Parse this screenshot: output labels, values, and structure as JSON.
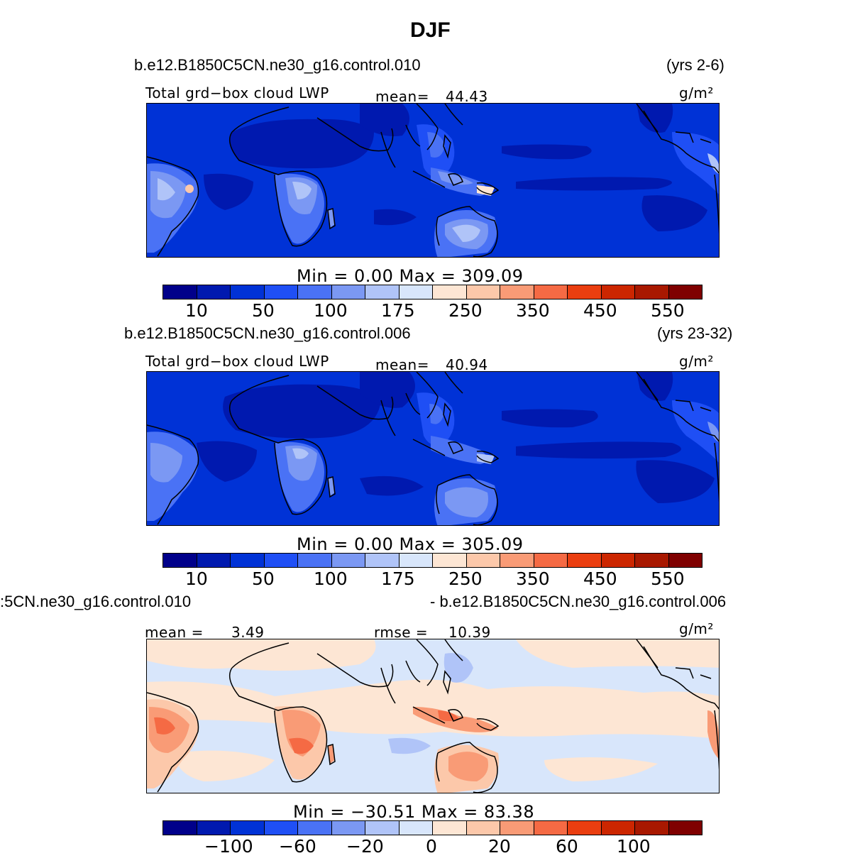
{
  "title": "DJF",
  "palette": [
    "#00008a",
    "#0019af",
    "#0032d6",
    "#1f4ff5",
    "#4a72f5",
    "#7b98f3",
    "#b0c4f8",
    "#d8e6fb",
    "#fde6d4",
    "#fcc8aa",
    "#f99b76",
    "#f56a44",
    "#ea3e10",
    "#cc2600",
    "#a81800",
    "#7f0000"
  ],
  "panels": [
    {
      "case_left": "b.e12.B1850C5CN.ne30_g16.control.010",
      "case_right": "(yrs 2-6)",
      "var_label": "Total grd−box cloud LWP",
      "stat_label": "mean=",
      "stat_value": "44.43",
      "units": "g/m²",
      "minmax": "Min  =     0.00  Max  =  309.09",
      "ticks": [
        "10",
        "50",
        "100",
        "175",
        "250",
        "350",
        "450",
        "550"
      ]
    },
    {
      "case_left": "b.e12.B1850C5CN.ne30_g16.control.006",
      "case_right": "(yrs 23-32)",
      "var_label": "Total grd−box cloud LWP",
      "stat_label": "mean=",
      "stat_value": "40.94",
      "units": "g/m²",
      "minmax": "Min  =     0.00  Max  =  305.09",
      "ticks": [
        "10",
        "50",
        "100",
        "175",
        "250",
        "350",
        "450",
        "550"
      ]
    },
    {
      "case_left": ":5CN.ne30_g16.control.010",
      "case_right": "- b.e12.B1850C5CN.ne30_g16.control.006",
      "stat_label": "mean =",
      "stat_value": "3.49",
      "stat2_label": "rmse =",
      "stat2_value": "10.39",
      "units": "g/m²",
      "minmax": "Min  = −30.51  Max  =   83.38",
      "ticks": [
        "−100",
        "−60",
        "−20",
        "0",
        "20",
        "60",
        "100"
      ]
    }
  ]
}
